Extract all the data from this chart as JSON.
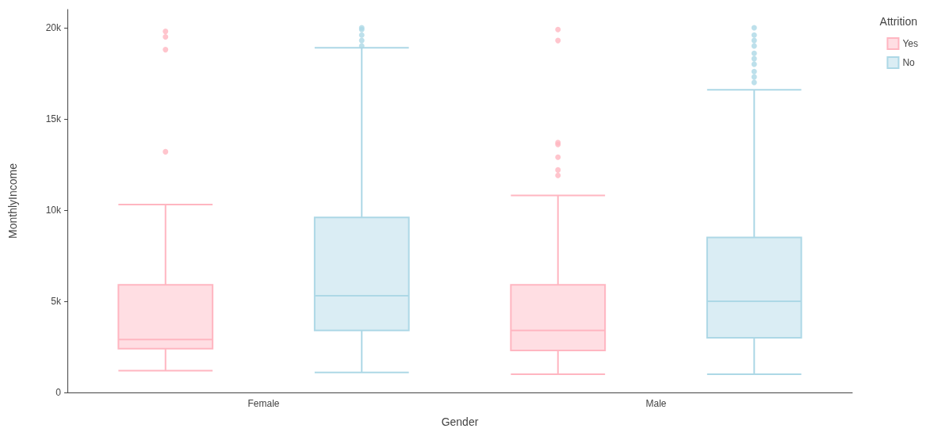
{
  "chart_data": {
    "type": "box",
    "xlabel": "Gender",
    "ylabel": "MonthlyIncome",
    "legend_title": "Attrition",
    "legend": "top right",
    "grid": false,
    "categories": [
      "Female",
      "Male"
    ],
    "ylim": [
      0,
      21000
    ],
    "yticks": [
      {
        "value": 0,
        "label": "0"
      },
      {
        "value": 5000,
        "label": "5k"
      },
      {
        "value": 10000,
        "label": "10k"
      },
      {
        "value": 15000,
        "label": "15k"
      },
      {
        "value": 20000,
        "label": "20k"
      }
    ],
    "series": [
      {
        "name": "Yes",
        "color": "#ffb6c1",
        "boxes": [
          {
            "low": 1200,
            "q1": 2400,
            "median": 2900,
            "q3": 5900,
            "high": 10300,
            "outliers": [
              13200,
              18800,
              19500,
              19800
            ]
          },
          {
            "low": 1000,
            "q1": 2300,
            "median": 3400,
            "q3": 5900,
            "high": 10800,
            "outliers": [
              11900,
              12200,
              12900,
              13600,
              13700,
              19300,
              19900
            ]
          }
        ]
      },
      {
        "name": "No",
        "color": "#add8e6",
        "boxes": [
          {
            "low": 1100,
            "q1": 3400,
            "median": 5300,
            "q3": 9600,
            "high": 18900,
            "outliers": [
              19000,
              19300,
              19600,
              19900,
              20000
            ]
          },
          {
            "low": 1000,
            "q1": 3000,
            "median": 5000,
            "q3": 8500,
            "high": 16600,
            "outliers": [
              17000,
              17300,
              17600,
              18000,
              18300,
              18600,
              19000,
              19300,
              19600,
              20000
            ]
          }
        ]
      }
    ]
  }
}
